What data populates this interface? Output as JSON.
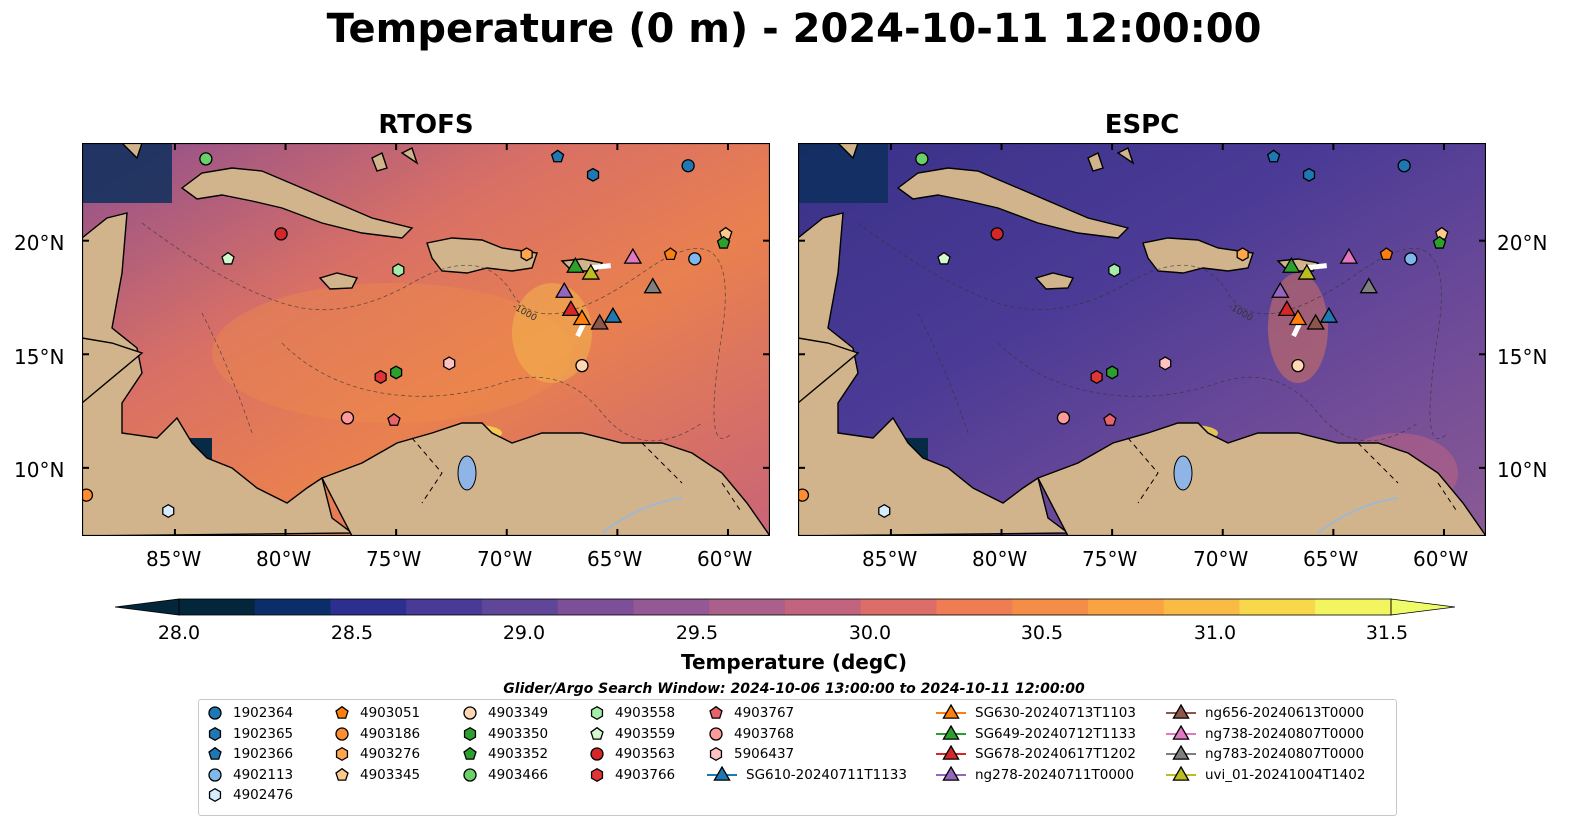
{
  "title": "Temperature (0 m) - 2024-10-11 12:00:00",
  "panels": [
    {
      "title": "RTOFS",
      "style": "warm"
    },
    {
      "title": "ESPC",
      "style": "cool"
    }
  ],
  "lon_ticks": [
    "85°W",
    "80°W",
    "75°W",
    "70°W",
    "65°W",
    "60°W"
  ],
  "lat_ticks": [
    "20°N",
    "15°N",
    "10°N"
  ],
  "colorbar": {
    "label": "Temperature (degC)",
    "ticks": [
      "28.0",
      "28.5",
      "29.0",
      "29.5",
      "30.0",
      "30.5",
      "31.0",
      "31.5"
    ],
    "colors": [
      "#04263a",
      "#0b2e6a",
      "#2c2f8e",
      "#4a3a97",
      "#5f4699",
      "#7c4f98",
      "#945895",
      "#ab5f8b",
      "#c2647f",
      "#dc6d68",
      "#ee7d53",
      "#f48d47",
      "#f9a342",
      "#f9bb43",
      "#f7d84b",
      "#f2f55f"
    ],
    "extend_low": "#04263a",
    "extend_high": "#eefc6a"
  },
  "legend": {
    "title": "Glider/Argo Search Window: 2024-10-06 13:00:00 to 2024-10-11 12:00:00",
    "items": [
      {
        "label": "1902364",
        "marker": "circle",
        "color": "#1f77b4",
        "col": 0,
        "row": 0
      },
      {
        "label": "1902365",
        "marker": "hexagon",
        "color": "#1f77b4",
        "col": 0,
        "row": 1
      },
      {
        "label": "1902366",
        "marker": "pentagon",
        "color": "#1f77b4",
        "col": 0,
        "row": 2
      },
      {
        "label": "4902113",
        "marker": "circle",
        "color": "#7fb8ec",
        "col": 0,
        "row": 3
      },
      {
        "label": "4902476",
        "marker": "hexagon",
        "color": "#d6ecff",
        "col": 0,
        "row": 4
      },
      {
        "label": "4903051",
        "marker": "pentagon",
        "color": "#ff7f0e",
        "col": 1,
        "row": 0
      },
      {
        "label": "4903186",
        "marker": "circle",
        "color": "#ff8c2e",
        "col": 1,
        "row": 1
      },
      {
        "label": "4903276",
        "marker": "hexagon",
        "color": "#ffa64d",
        "col": 1,
        "row": 2
      },
      {
        "label": "4903345",
        "marker": "pentagon",
        "color": "#ffc98b",
        "col": 1,
        "row": 3
      },
      {
        "label": "4903349",
        "marker": "circle",
        "color": "#ffd7b3",
        "col": 2,
        "row": 0
      },
      {
        "label": "4903350",
        "marker": "hexagon",
        "color": "#2ca02c",
        "col": 2,
        "row": 1
      },
      {
        "label": "4903352",
        "marker": "pentagon",
        "color": "#2ca02c",
        "col": 2,
        "row": 2
      },
      {
        "label": "4903466",
        "marker": "circle",
        "color": "#6ad06a",
        "col": 2,
        "row": 3
      },
      {
        "label": "4903558",
        "marker": "hexagon",
        "color": "#a4ecaa",
        "col": 3,
        "row": 0
      },
      {
        "label": "4903559",
        "marker": "pentagon",
        "color": "#d3f7cf",
        "col": 3,
        "row": 1
      },
      {
        "label": "4903563",
        "marker": "circle",
        "color": "#d62728",
        "col": 3,
        "row": 2
      },
      {
        "label": "4903766",
        "marker": "hexagon",
        "color": "#e03537",
        "col": 3,
        "row": 3
      },
      {
        "label": "4903767",
        "marker": "pentagon",
        "color": "#e8646a",
        "col": 4,
        "row": 0
      },
      {
        "label": "4903768",
        "marker": "circle",
        "color": "#ff9a9a",
        "col": 4,
        "row": 1
      },
      {
        "label": "5906437",
        "marker": "hexagon",
        "color": "#ffc2c2",
        "col": 4,
        "row": 2
      },
      {
        "label": "SG610-20240711T1133",
        "marker": "triangle",
        "color": "#1f77b4",
        "col": 4,
        "row": 3
      },
      {
        "label": "SG630-20240713T1103",
        "marker": "triangle",
        "color": "#ff7f0e",
        "col": 5,
        "row": 0
      },
      {
        "label": "SG649-20240712T1133",
        "marker": "triangle",
        "color": "#2ca02c",
        "col": 5,
        "row": 1
      },
      {
        "label": "SG678-20240617T1202",
        "marker": "triangle",
        "color": "#d62728",
        "col": 5,
        "row": 2
      },
      {
        "label": "ng278-20240711T0000",
        "marker": "triangle",
        "color": "#9467bd",
        "col": 5,
        "row": 3
      },
      {
        "label": "ng656-20240613T0000",
        "marker": "triangle",
        "color": "#8c564b",
        "col": 6,
        "row": 0
      },
      {
        "label": "ng738-20240807T0000",
        "marker": "triangle",
        "color": "#e377c2",
        "col": 6,
        "row": 1
      },
      {
        "label": "ng783-20240807T0000",
        "marker": "triangle",
        "color": "#7f7f7f",
        "col": 6,
        "row": 2
      },
      {
        "label": "uvi_01-20241004T1402",
        "marker": "triangle",
        "color": "#bcbd22",
        "col": 6,
        "row": 3
      }
    ]
  },
  "map_markers": [
    {
      "label": "1902364",
      "lon": -61.8,
      "lat": 23.3
    },
    {
      "label": "1902365",
      "lon": -66.1,
      "lat": 22.9
    },
    {
      "label": "1902366",
      "lon": -67.7,
      "lat": 23.7
    },
    {
      "label": "4902113",
      "lon": -61.5,
      "lat": 19.2
    },
    {
      "label": "4902476",
      "lon": -85.3,
      "lat": 8.1
    },
    {
      "label": "4903051",
      "lon": -62.6,
      "lat": 19.4
    },
    {
      "label": "4903186",
      "lon": -89.0,
      "lat": 8.8
    },
    {
      "label": "4903276",
      "lon": -69.1,
      "lat": 19.4
    },
    {
      "label": "4903345",
      "lon": -60.1,
      "lat": 20.3
    },
    {
      "label": "4903349",
      "lon": -66.6,
      "lat": 14.5
    },
    {
      "label": "4903350",
      "lon": -75.0,
      "lat": 14.2
    },
    {
      "label": "4903352",
      "lon": -60.2,
      "lat": 19.9
    },
    {
      "label": "4903466",
      "lon": -83.6,
      "lat": 23.6
    },
    {
      "label": "4903558",
      "lon": -74.9,
      "lat": 18.7
    },
    {
      "label": "4903559",
      "lon": -82.6,
      "lat": 19.2
    },
    {
      "label": "4903563",
      "lon": -80.2,
      "lat": 20.3
    },
    {
      "label": "4903766",
      "lon": -75.7,
      "lat": 14.0
    },
    {
      "label": "4903767",
      "lon": -75.1,
      "lat": 12.1
    },
    {
      "label": "4903768",
      "lon": -77.2,
      "lat": 12.2
    },
    {
      "label": "5906437",
      "lon": -72.6,
      "lat": 14.6
    },
    {
      "label": "SG610-20240711T1133",
      "lon": -65.2,
      "lat": 16.7
    },
    {
      "label": "SG630-20240713T1103",
      "lon": -66.6,
      "lat": 16.6
    },
    {
      "label": "SG649-20240712T1133",
      "lon": -66.9,
      "lat": 18.9
    },
    {
      "label": "SG678-20240617T1202",
      "lon": -67.1,
      "lat": 17.0
    },
    {
      "label": "ng278-20240711T0000",
      "lon": -67.4,
      "lat": 17.8
    },
    {
      "label": "ng656-20240613T0000",
      "lon": -65.8,
      "lat": 16.4
    },
    {
      "label": "ng738-20240807T0000",
      "lon": -64.3,
      "lat": 19.3
    },
    {
      "label": "ng783-20240807T0000",
      "lon": -63.4,
      "lat": 18.0
    },
    {
      "label": "uvi_01-20241004T1402",
      "lon": -66.2,
      "lat": 18.6
    }
  ],
  "contour_label": "-1000"
}
